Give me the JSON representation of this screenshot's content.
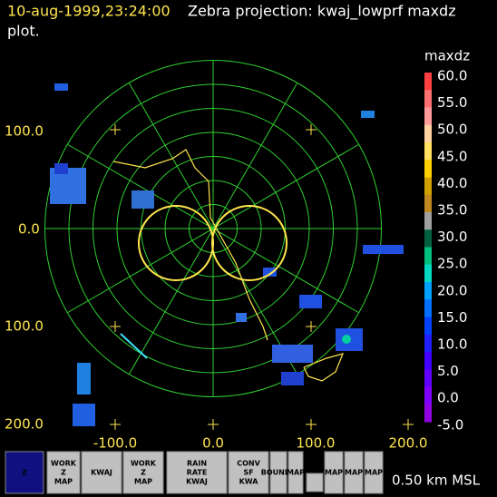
{
  "header": {
    "time": "10-aug-1999,23:24:00",
    "title": "Zebra projection: kwaj_lowprf maxdz",
    "title_cont": "plot."
  },
  "plot": {
    "y_labels": [
      "100.0",
      "0.0",
      "100.0",
      "200.0"
    ],
    "x_labels": [
      "-100.0",
      "0.0",
      "100.0",
      "200.0"
    ]
  },
  "colorbar": {
    "field": "maxdz",
    "labels": [
      "60.0",
      "55.0",
      "50.0",
      "45.0",
      "40.0",
      "35.0",
      "30.0",
      "25.0",
      "20.0",
      "15.0",
      "10.0",
      "5.0",
      "0.0",
      "-5.0"
    ]
  },
  "toolbar": {
    "icons": [
      {
        "lines": [
          "Z"
        ]
      },
      {
        "lines": [
          "WORK",
          "Z",
          "MAP"
        ]
      },
      {
        "lines": [
          "KWAJ"
        ]
      },
      {
        "lines": [
          "WORK",
          "Z",
          "MAP"
        ]
      },
      {
        "lines": [
          "RAIN",
          "RATE",
          "KWAJ"
        ]
      },
      {
        "lines": [
          "CONV",
          "SF",
          "KWA"
        ]
      },
      {
        "lines": [
          "BOUNDS"
        ]
      },
      {
        "lines": [
          "MAP"
        ]
      },
      {
        "lines": [
          "MAP"
        ]
      },
      {
        "lines": [
          "MAP"
        ]
      },
      {
        "lines": [
          "MAP"
        ]
      }
    ],
    "status": "0.50 km MSL"
  }
}
